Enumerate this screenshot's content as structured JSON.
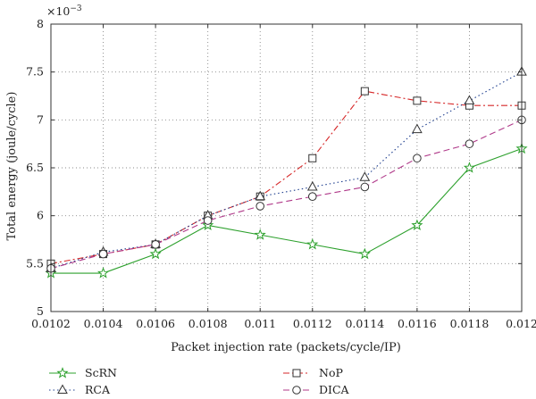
{
  "chart_data": {
    "type": "line",
    "x": [
      "0.0102",
      "0.0104",
      "0.0106",
      "0.0108",
      "0.011",
      "0.0112",
      "0.0114",
      "0.0116",
      "0.0118",
      "0.012"
    ],
    "xlabel": "Packet injection rate (packets/cycle/IP)",
    "ylabel": "Total energy (joule/cycle)",
    "yscale_base": "×10",
    "yscale_exp": "−3",
    "ylim": [
      5,
      8
    ],
    "yticks": [
      "5",
      "5.5",
      "6",
      "6.5",
      "7",
      "7.5",
      "8"
    ],
    "grid": true,
    "legend_position": "bottom",
    "series": [
      {
        "name": "ScRN",
        "values": [
          5.4,
          5.4,
          5.6,
          5.9,
          5.8,
          5.7,
          5.6,
          5.9,
          6.5,
          6.7
        ],
        "color": "#2ca02c",
        "marker": "star",
        "dash": ""
      },
      {
        "name": "NoP",
        "values": [
          5.5,
          5.6,
          5.7,
          6.0,
          6.2,
          6.6,
          7.3,
          7.2,
          7.15,
          7.15
        ],
        "color": "#d62728",
        "marker": "square",
        "dash": "7,3,2,3"
      },
      {
        "name": "RCA",
        "values": [
          5.45,
          5.62,
          5.7,
          6.0,
          6.2,
          6.3,
          6.4,
          6.9,
          7.2,
          7.5
        ],
        "color": "#1f3f8f",
        "marker": "triangle",
        "dash": "1.5,3"
      },
      {
        "name": "DICA",
        "values": [
          5.45,
          5.6,
          5.7,
          5.95,
          6.1,
          6.2,
          6.3,
          6.6,
          6.75,
          7.0
        ],
        "color": "#b03a8a",
        "marker": "circle",
        "dash": "7,4"
      }
    ]
  }
}
